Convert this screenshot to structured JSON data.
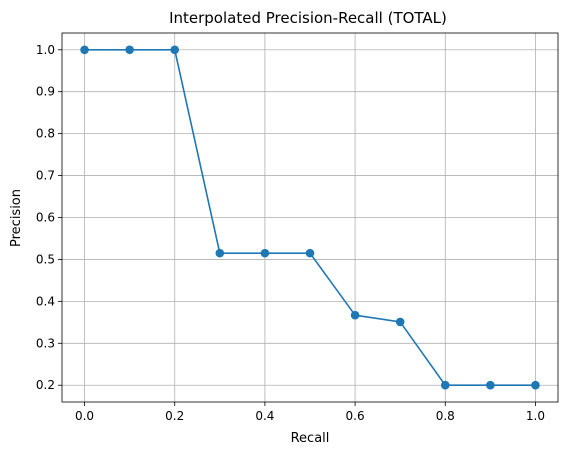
{
  "chart_data": {
    "type": "line",
    "title": "Interpolated Precision-Recall (TOTAL)",
    "xlabel": "Recall",
    "ylabel": "Precision",
    "xlim": [
      -0.05,
      1.05
    ],
    "ylim": [
      0.16,
      1.04
    ],
    "xticks": [
      "0.0",
      "0.2",
      "0.4",
      "0.6",
      "0.8",
      "1.0"
    ],
    "yticks": [
      "0.2",
      "0.3",
      "0.4",
      "0.5",
      "0.6",
      "0.7",
      "0.8",
      "0.9",
      "1.0"
    ],
    "grid": true,
    "series": [
      {
        "color": "#1f77b4",
        "marker": "circle",
        "x": [
          0.0,
          0.1,
          0.2,
          0.3,
          0.4,
          0.5,
          0.6,
          0.7,
          0.8,
          0.9,
          1.0
        ],
        "y": [
          1.0,
          1.0,
          1.0,
          0.515,
          0.515,
          0.515,
          0.367,
          0.351,
          0.2,
          0.2,
          0.2
        ]
      }
    ]
  }
}
